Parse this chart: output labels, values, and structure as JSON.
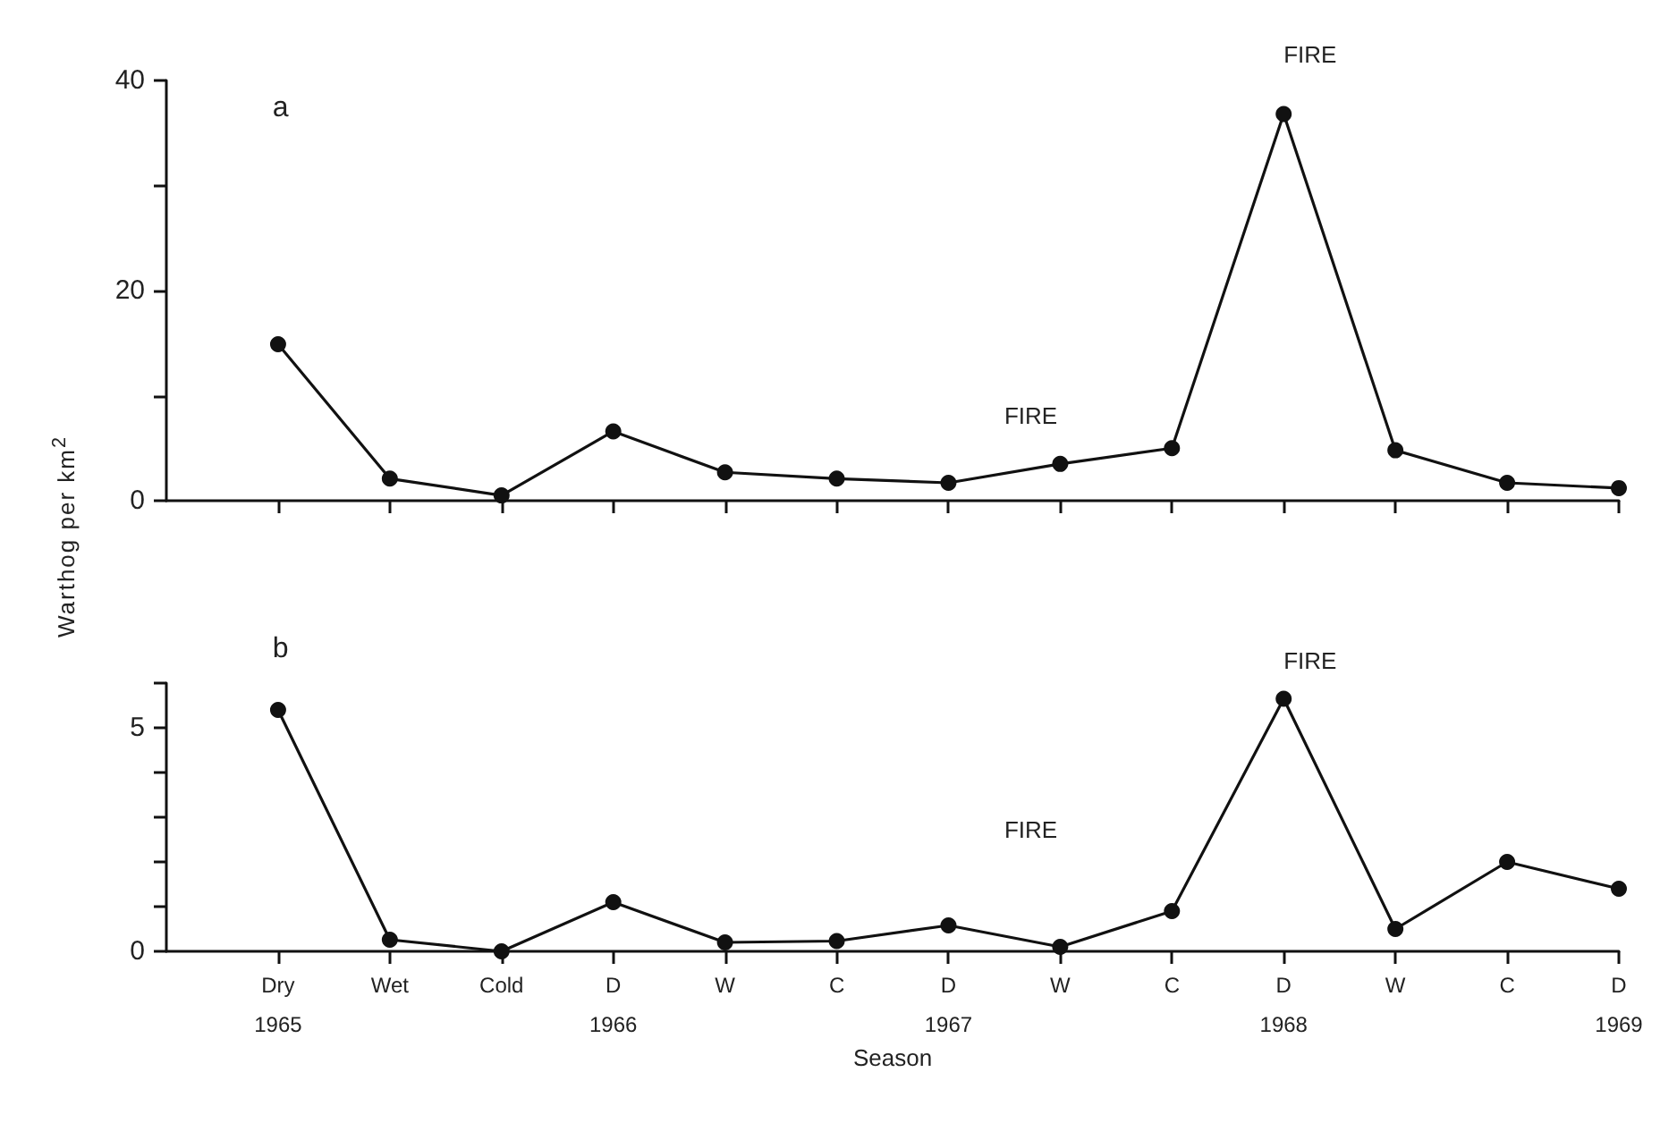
{
  "chart_data": [
    {
      "type": "line",
      "ylabel": "Warthog per km$^{2}$",
      "annotations": [
        "a",
        "FIRE",
        "FIRE"
      ],
      "categories": [
        null,
        null,
        null,
        null,
        null,
        null,
        null,
        null,
        null,
        null,
        null,
        null,
        null
      ],
      "series": [
        {
          "color": "#111111",
          "values": [
            14.9,
            2.1,
            0.5,
            6.6,
            2.7,
            2.1,
            1.7,
            3.5,
            5.0,
            36.8,
            4.8,
            1.7,
            1.2
          ]
        }
      ],
      "ylim": [
        0,
        40
      ],
      "yticks": [
        0,
        {
          "value": 10,
          "label": null
        },
        20,
        {
          "value": 30,
          "label": null
        },
        40
      ],
      "grid": false,
      "marker": "circle",
      "line_style": "solid"
    },
    {
      "type": "line",
      "xlabel": "Season",
      "annotations": [
        "b",
        "FIRE",
        "FIRE"
      ],
      "categories": [
        "Dry\n1965",
        "Wet",
        "Cold",
        "D\n1966",
        "W",
        "C",
        "D\n1967",
        "W",
        "C",
        "D\n1968",
        "W",
        "C",
        "D\n1969"
      ],
      "series": [
        {
          "color": "#111111",
          "values": [
            5.4,
            0.26,
            0,
            1.1,
            0.2,
            0.23,
            0.58,
            0.1,
            0.9,
            5.65,
            0.5,
            2.0,
            1.4
          ]
        }
      ],
      "ylim": [
        0,
        6
      ],
      "yticks": [
        0,
        {
          "value": 1,
          "label": null
        },
        {
          "value": 2,
          "label": null
        },
        {
          "value": 3,
          "label": null
        },
        {
          "value": 4,
          "label": null
        },
        5,
        {
          "value": 6,
          "label": null
        }
      ],
      "grid": false,
      "marker": "circle",
      "line_style": "solid"
    }
  ]
}
